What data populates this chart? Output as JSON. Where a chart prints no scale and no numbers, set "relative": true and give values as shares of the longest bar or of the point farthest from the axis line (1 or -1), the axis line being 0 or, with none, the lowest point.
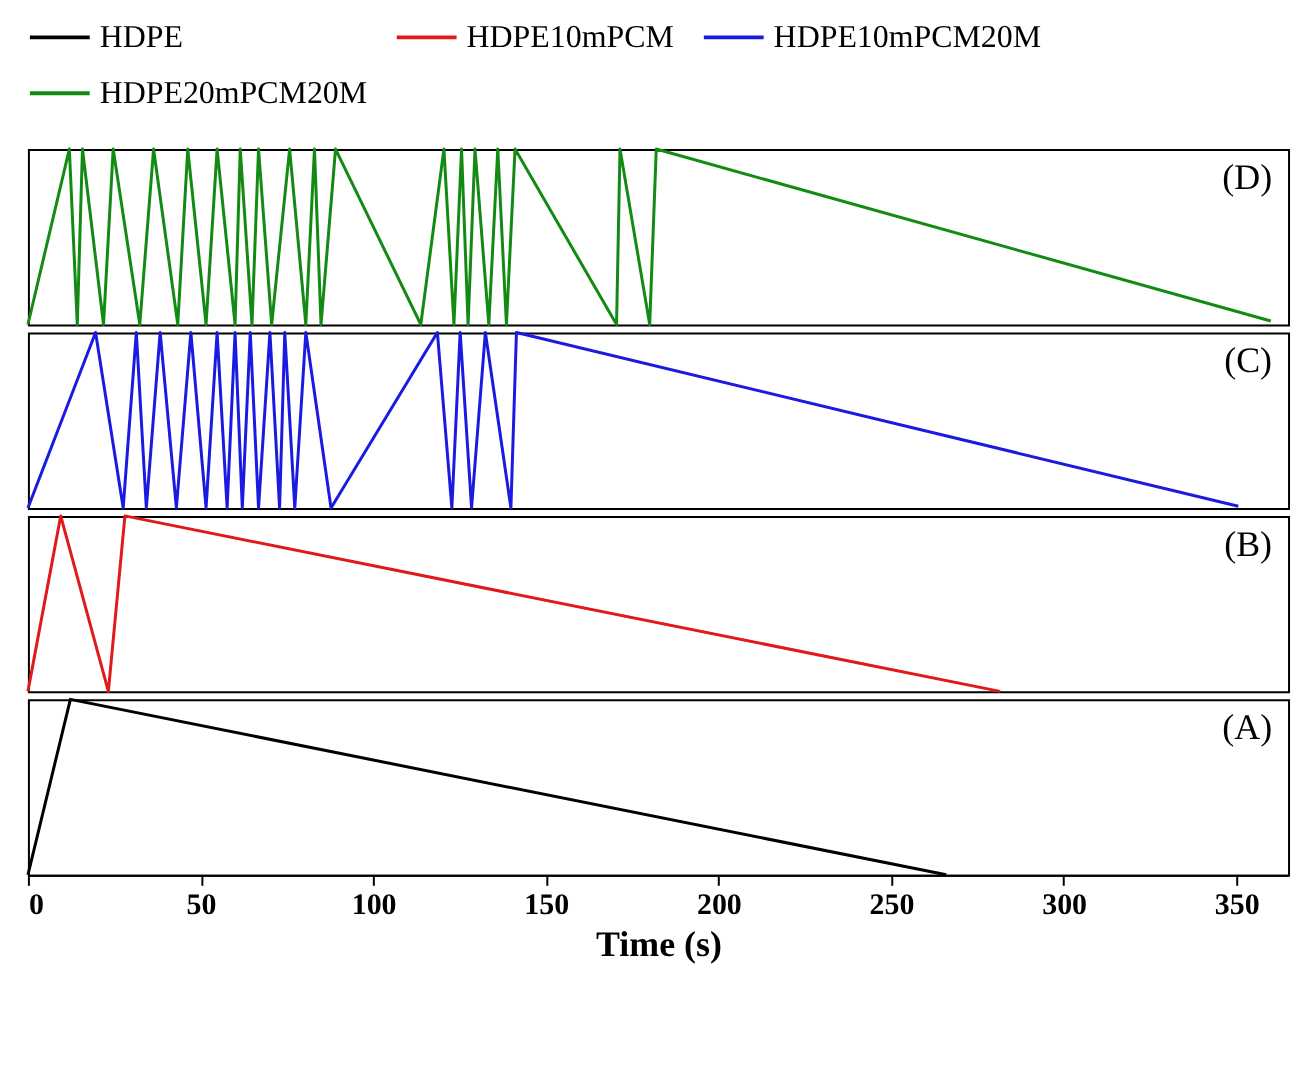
{
  "chart_data": [
    {
      "type": "line",
      "relative": true,
      "legend": "top",
      "tick_labels": false,
      "xlim": [
        0,
        365
      ],
      "annotations": [
        "(D)"
      ],
      "series": [
        {
          "name": "HDPE20mPCM20M",
          "color": "#138a13",
          "x": [
            0,
            12,
            14.3,
            15.8,
            21.9,
            24.7,
            32.4,
            36.4,
            43.4,
            46.3,
            51.6,
            54.8,
            60,
            61.5,
            64.9,
            66.8,
            70.6,
            75.8,
            80.5,
            83,
            84.9,
            89.1,
            113.8,
            120.5,
            123.4,
            125.6,
            127.5,
            129.5,
            133.5,
            136.1,
            138.6,
            141.1,
            170.5,
            171.5,
            180.1,
            182,
            360
          ],
          "values": [
            0,
            1,
            0,
            1,
            0,
            1,
            0,
            1,
            0,
            1,
            0,
            1,
            0,
            1,
            0,
            1,
            0,
            1,
            0,
            1,
            0,
            1,
            0,
            1,
            0,
            1,
            0,
            1,
            0,
            1,
            0,
            1,
            0,
            1,
            0,
            1,
            0.02
          ]
        }
      ]
    },
    {
      "type": "line",
      "relative": true,
      "tick_labels": false,
      "xlim": [
        0,
        365
      ],
      "annotations": [
        "(C)"
      ],
      "series": [
        {
          "name": "HDPE10mPCM20M",
          "color": "#1a1ae0",
          "x": [
            0,
            19.6,
            27.6,
            31.4,
            34.3,
            38.3,
            43,
            47.2,
            51.6,
            54.8,
            57.7,
            60,
            62.1,
            64.4,
            66.8,
            70.1,
            72.9,
            74.4,
            77.3,
            80.5,
            87.8,
            118.6,
            122.8,
            125.2,
            128.5,
            132.5,
            139.9,
            141.5,
            350.6
          ],
          "values": [
            0,
            1,
            0,
            1,
            0,
            1,
            0,
            1,
            0,
            1,
            0,
            1,
            0,
            1,
            0,
            1,
            0,
            1,
            0,
            1,
            0,
            1,
            0,
            1,
            0,
            1,
            0,
            1,
            0.01
          ]
        }
      ]
    },
    {
      "type": "line",
      "relative": true,
      "tick_labels": false,
      "xlim": [
        0,
        365
      ],
      "annotations": [
        "(B)"
      ],
      "series": [
        {
          "name": "HDPE10mPCM",
          "color": "#e01a1a",
          "x": [
            0,
            9.5,
            23.3,
            28.1,
            281.6
          ],
          "values": [
            0,
            1,
            0,
            1,
            0
          ]
        }
      ]
    },
    {
      "type": "line",
      "relative": true,
      "tick_labels": "x",
      "xlim": [
        0,
        365
      ],
      "xticks": [
        0,
        50,
        100,
        150,
        200,
        250,
        300,
        350
      ],
      "xlabel": "Time (s)",
      "annotations": [
        "(A)"
      ],
      "series": [
        {
          "name": "HDPE",
          "color": "#000000",
          "x": [
            0,
            12.3,
            266
          ],
          "values": [
            0,
            1,
            0
          ]
        }
      ]
    }
  ]
}
